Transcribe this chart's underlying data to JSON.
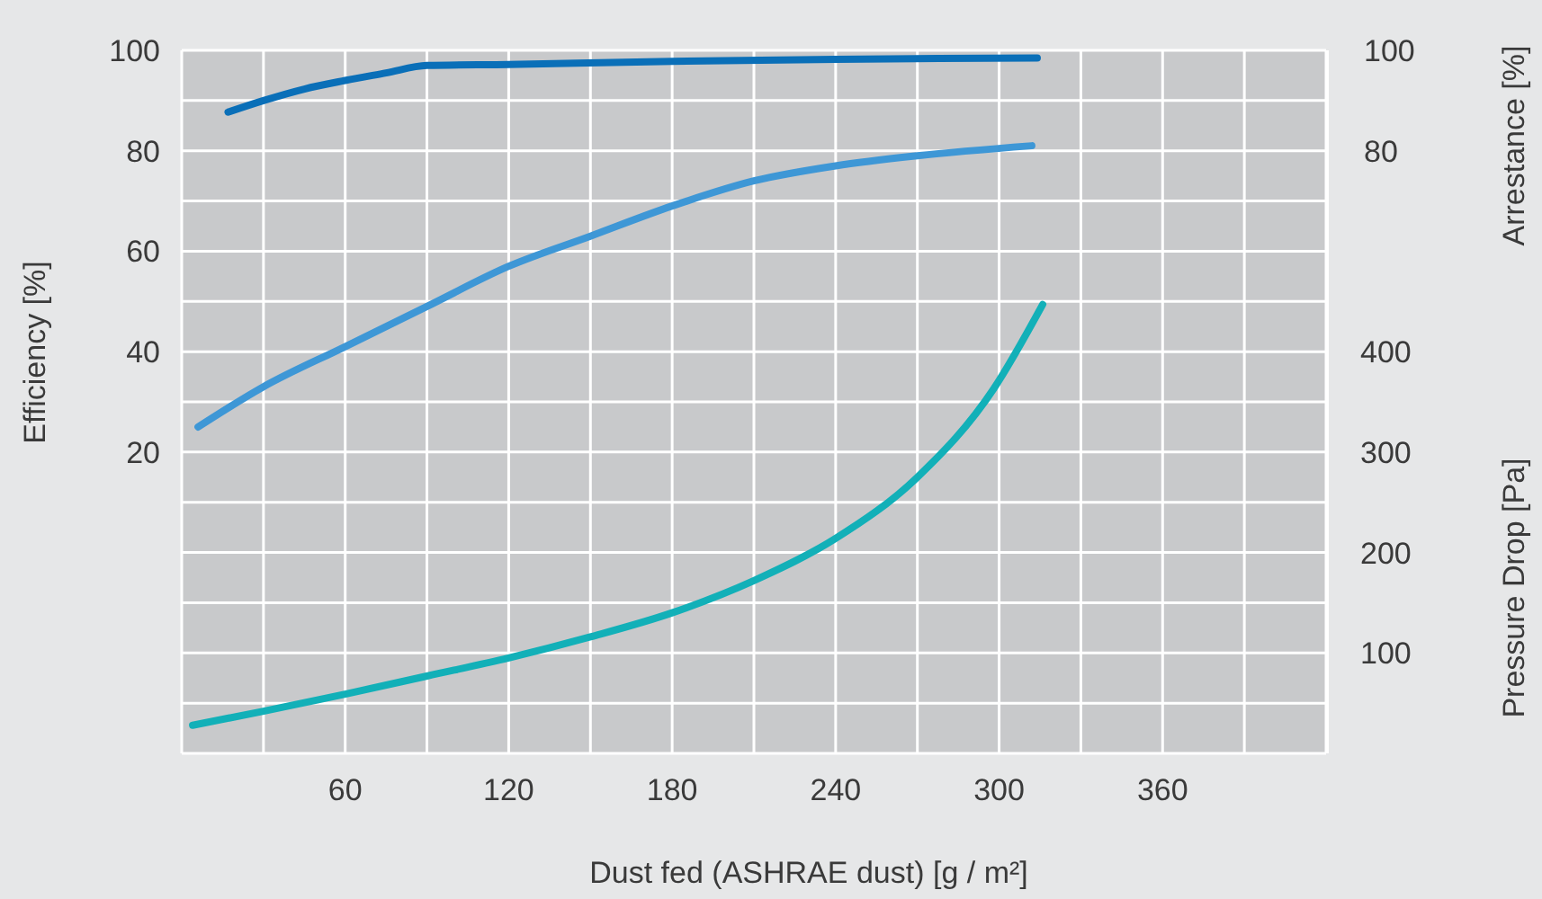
{
  "chart_data": {
    "type": "line",
    "xlabel": "Dust fed (ASHRAE dust) [g / m²]",
    "ylabel": "Efficiency [%]",
    "y2label": "Pressure Drop [Pa]",
    "y3label": "Arrestance [%]",
    "xlim": [
      0,
      420
    ],
    "xticks": [
      {
        "value": 0,
        "label": null
      },
      {
        "value": 30,
        "label": null
      },
      60,
      {
        "value": 90,
        "label": null
      },
      120,
      {
        "value": 150,
        "label": null
      },
      180,
      {
        "value": 210,
        "label": null
      },
      240,
      {
        "value": 270,
        "label": null
      },
      300,
      {
        "value": 330,
        "label": null
      },
      360,
      {
        "value": 390,
        "label": null
      },
      {
        "value": 420,
        "label": null
      }
    ],
    "ylim": [
      -40,
      100
    ],
    "yticks": [
      {
        "value": -40,
        "label": null
      },
      {
        "value": -30,
        "label": null
      },
      {
        "value": -20,
        "label": null
      },
      {
        "value": -10,
        "label": null
      },
      {
        "value": 0,
        "label": null
      },
      {
        "value": 10,
        "label": null
      },
      20,
      {
        "value": 30,
        "label": null
      },
      40,
      {
        "value": 50,
        "label": null
      },
      60,
      {
        "value": 70,
        "label": null
      },
      80,
      {
        "value": 90,
        "label": null
      },
      100
    ],
    "y2lim": [
      0,
      700
    ],
    "y2ticks": [
      100,
      200,
      300,
      400
    ],
    "y3lim": [
      -40,
      100
    ],
    "y3ticks": [
      80,
      100
    ],
    "grid": true,
    "marker": "none",
    "line_style": "solid",
    "series": [
      {
        "color": "#0a6fb8",
        "axis": "y3",
        "x": [
          17,
          30,
          45,
          60,
          75,
          90,
          120,
          180,
          240,
          314
        ],
        "values": [
          87.7,
          90,
          92.3,
          94,
          95.5,
          97,
          97.2,
          97.8,
          98.2,
          98.5
        ]
      },
      {
        "color": "#3e97d6",
        "x": [
          6,
          30,
          60,
          90,
          120,
          150,
          180,
          210,
          240,
          270,
          312
        ],
        "values": [
          25,
          33,
          41,
          49,
          57,
          63,
          69,
          74,
          77,
          79,
          81
        ]
      },
      {
        "color": "#12b0b8",
        "axis": "y2",
        "x": [
          4,
          30,
          60,
          90,
          120,
          150,
          180,
          210,
          240,
          270,
          298,
          316
        ],
        "values": [
          28,
          42,
          59,
          77,
          95,
          116,
          140,
          172,
          214,
          275,
          363,
          447
        ]
      }
    ]
  }
}
